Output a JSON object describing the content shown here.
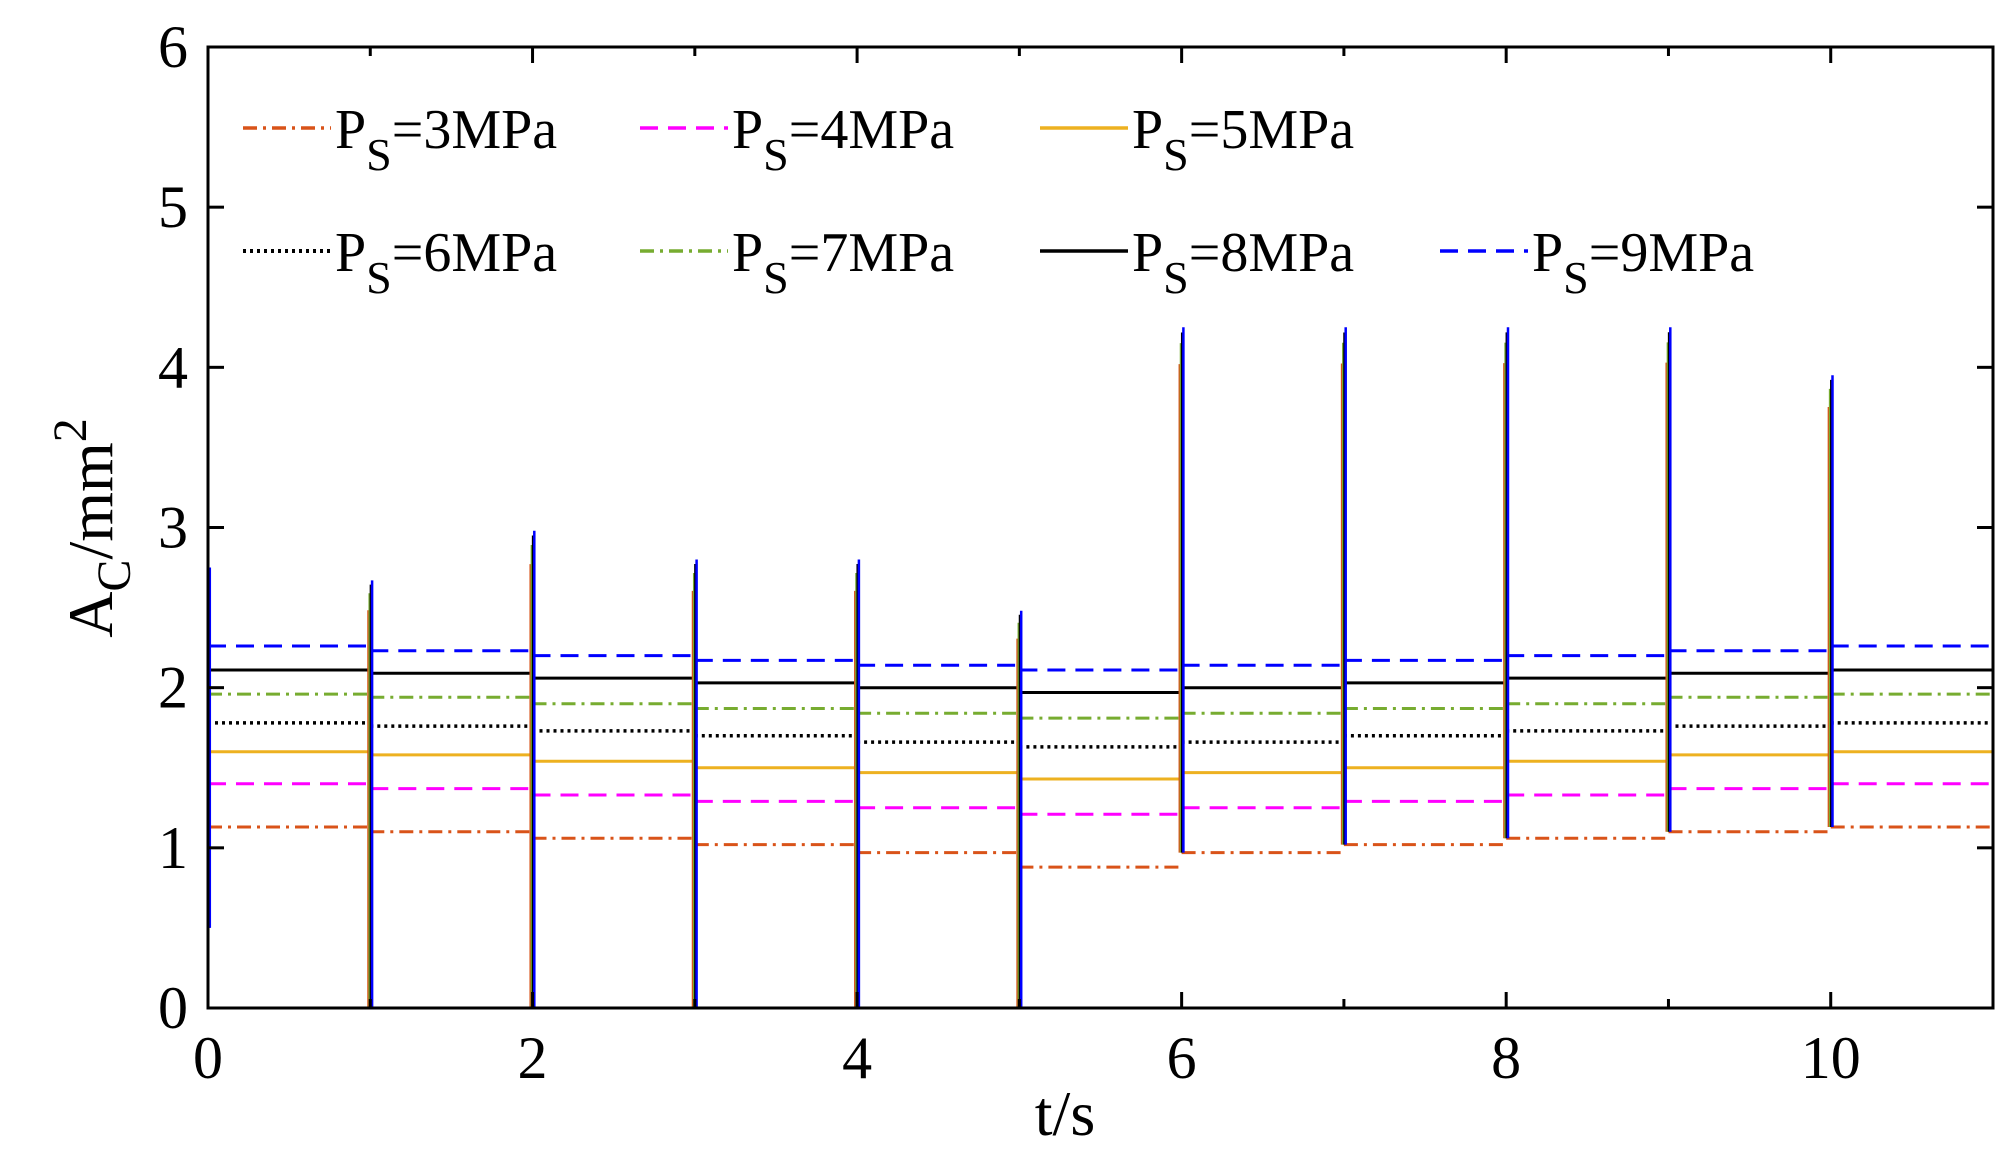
{
  "chart_data": {
    "type": "line",
    "title": "",
    "xlabel": "t/s",
    "ylabel": {
      "base": "A",
      "sub": "C",
      "unit": "/mm",
      "sup": "2"
    },
    "xlim": [
      0,
      11
    ],
    "ylim": [
      0,
      6
    ],
    "xticks": [
      0,
      2,
      4,
      6,
      8,
      10
    ],
    "yticks": [
      0,
      1,
      2,
      3,
      4,
      5,
      6
    ],
    "legend_position": "top-left",
    "switch_times": [
      1,
      2,
      3,
      4,
      5,
      6,
      7,
      8,
      9,
      10
    ],
    "series": [
      {
        "name": "PS=3MPa",
        "label_base": "P",
        "label_sub": "S",
        "label_rest": "=3MPa",
        "color": "#d95319",
        "dash": "14 6 3 6",
        "levels": [
          1.13,
          1.1,
          1.06,
          1.02,
          0.97,
          0.88,
          0.97,
          1.02,
          1.06,
          1.1,
          1.13
        ]
      },
      {
        "name": "PS=4MPa",
        "label_base": "P",
        "label_sub": "S",
        "label_rest": "=4MPa",
        "color": "#ff00ff",
        "dash": "18 10",
        "levels": [
          1.4,
          1.37,
          1.33,
          1.29,
          1.25,
          1.21,
          1.25,
          1.29,
          1.33,
          1.37,
          1.4
        ]
      },
      {
        "name": "PS=5MPa",
        "label_base": "P",
        "label_sub": "S",
        "label_rest": "=5MPa",
        "color": "#edb120",
        "dash": "",
        "levels": [
          1.6,
          1.58,
          1.54,
          1.5,
          1.47,
          1.43,
          1.47,
          1.5,
          1.54,
          1.58,
          1.6
        ]
      },
      {
        "name": "PS=6MPa",
        "label_base": "P",
        "label_sub": "S",
        "label_rest": "=6MPa",
        "color": "#000000",
        "dash": "3 4",
        "levels": [
          1.78,
          1.76,
          1.73,
          1.7,
          1.66,
          1.63,
          1.66,
          1.7,
          1.73,
          1.76,
          1.78
        ]
      },
      {
        "name": "PS=7MPa",
        "label_base": "P",
        "label_sub": "S",
        "label_rest": "=7MPa",
        "color": "#77ac30",
        "dash": "14 6 3 6",
        "levels": [
          1.96,
          1.94,
          1.9,
          1.87,
          1.84,
          1.81,
          1.84,
          1.87,
          1.9,
          1.94,
          1.96
        ]
      },
      {
        "name": "PS=8MPa",
        "label_base": "P",
        "label_sub": "S",
        "label_rest": "=8MPa",
        "color": "#000000",
        "dash": "",
        "levels": [
          2.11,
          2.09,
          2.06,
          2.03,
          2.0,
          1.97,
          2.0,
          2.03,
          2.06,
          2.09,
          2.11
        ]
      },
      {
        "name": "PS=9MPa",
        "label_base": "P",
        "label_sub": "S",
        "label_rest": "=9MPa",
        "color": "#0000ff",
        "dash": "18 10",
        "levels": [
          2.26,
          2.23,
          2.2,
          2.17,
          2.14,
          2.11,
          2.14,
          2.17,
          2.2,
          2.23,
          2.26
        ]
      }
    ],
    "transients": [
      {
        "t": 0,
        "min": 0.5,
        "max": 2.75
      },
      {
        "t": 1,
        "min": 0.0,
        "max": 2.67
      },
      {
        "t": 2,
        "min": 0.0,
        "max": 2.98
      },
      {
        "t": 3,
        "min": 0.0,
        "max": 2.8
      },
      {
        "t": 4,
        "min": 0.0,
        "max": 2.8
      },
      {
        "t": 5,
        "min": 0.0,
        "max": 2.48
      },
      {
        "t": 6,
        "min": 0.97,
        "max": 4.25
      },
      {
        "t": 7,
        "min": 1.02,
        "max": 4.25
      },
      {
        "t": 8,
        "min": 1.06,
        "max": 4.25
      },
      {
        "t": 9,
        "min": 1.1,
        "max": 4.25
      },
      {
        "t": 10,
        "min": 1.13,
        "max": 3.95
      }
    ]
  }
}
